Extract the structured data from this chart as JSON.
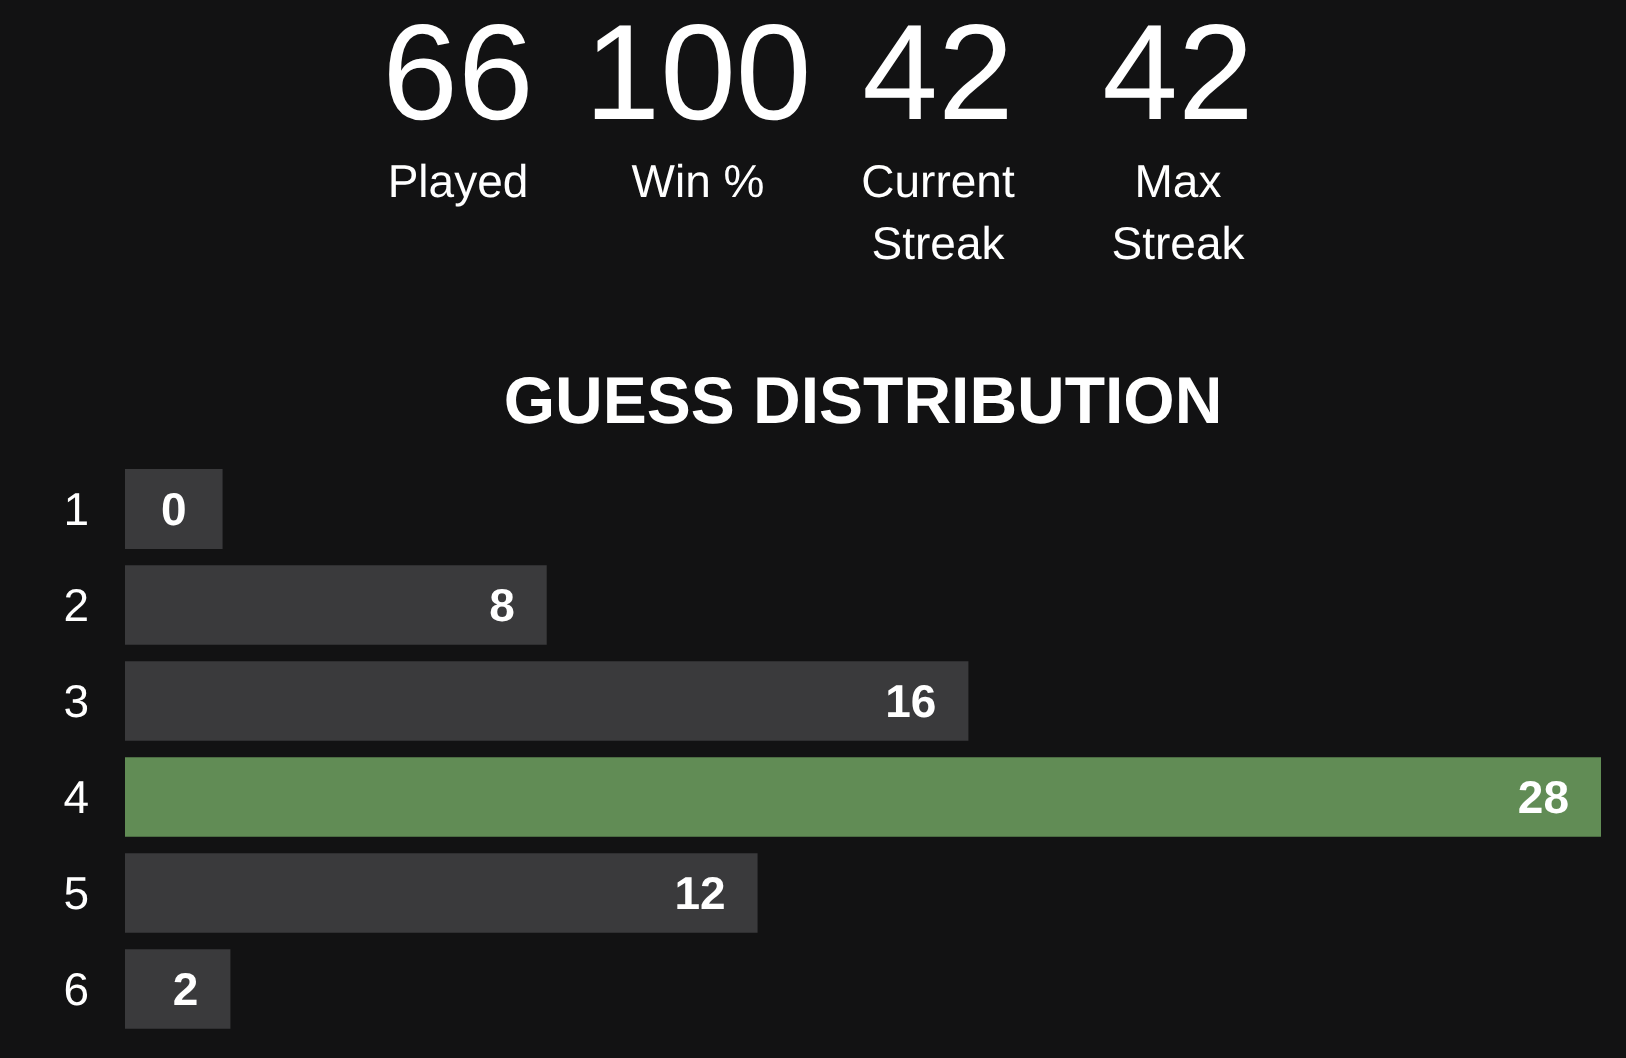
{
  "chart_data": [
    {
      "type": "other",
      "annotations": [
        "66",
        "Played",
        "100",
        "Win %",
        "42",
        "Current Streak",
        "42",
        "Max Streak"
      ]
    },
    {
      "type": "bar",
      "orientation": "horizontal",
      "title": "GUESS DISTRIBUTION",
      "categories": [
        "1",
        "2",
        "3",
        "4",
        "5",
        "6"
      ],
      "values": [
        0,
        8,
        16,
        28,
        12,
        2
      ],
      "colors": [
        "#3a3a3c",
        "#3a3a3c",
        "#3a3a3c",
        "#618c55",
        "#3a3a3c",
        "#3a3a3c"
      ],
      "data_labels": true,
      "tick_labels": "y"
    }
  ]
}
